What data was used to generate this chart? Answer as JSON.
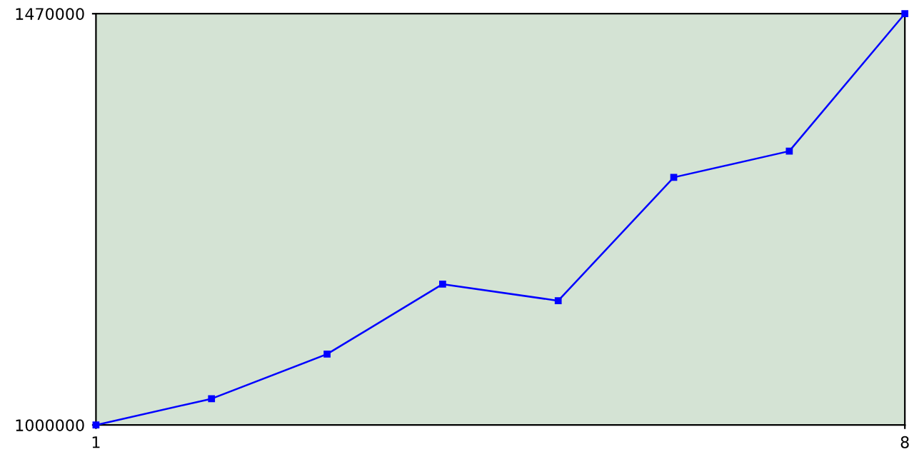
{
  "chart_data": {
    "type": "line",
    "x": [
      1,
      2,
      3,
      4,
      5,
      6,
      7,
      8
    ],
    "series": [
      {
        "color": "#0000ff",
        "values": [
          1000000,
          1030000,
          1081000,
          1161000,
          1142000,
          1283000,
          1313000,
          1470000
        ]
      }
    ],
    "xlim": [
      1,
      8
    ],
    "xticks": [
      1,
      8
    ],
    "ylim": [
      1000000,
      1470000
    ],
    "yticks": [
      1000000,
      1470000
    ],
    "grid": false,
    "legend": false,
    "marker": "square",
    "line_style": "solid"
  }
}
